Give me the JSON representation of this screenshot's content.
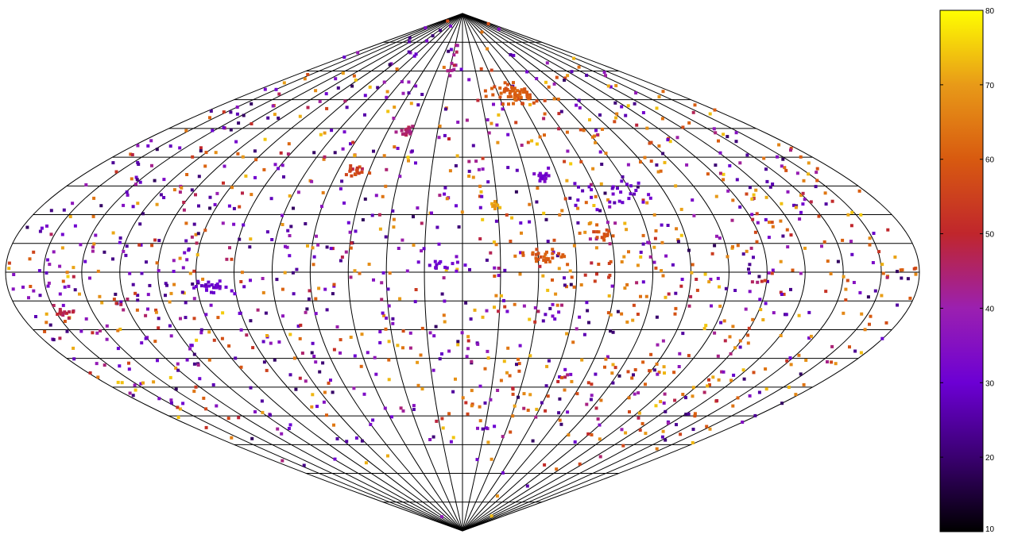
{
  "chart_data": {
    "type": "scatter",
    "projection": "sinusoidal",
    "grid": true,
    "grid_lines": {
      "parallels_deg": 10,
      "meridians_deg": 15
    },
    "x_range": [
      -180,
      180
    ],
    "y_range": [
      -90,
      90
    ],
    "colorbar": {
      "position": "right",
      "range": [
        10,
        80
      ],
      "ticks": [
        "10",
        "20",
        "30",
        "40",
        "50",
        "60",
        "70",
        "80"
      ],
      "palette": [
        "#000000",
        "#3a0070",
        "#6c00d4",
        "#9b20b0",
        "#c0262c",
        "#d85a10",
        "#e89a18",
        "#ffff00"
      ]
    },
    "clusters": [
      {
        "lon": 45,
        "lat": 62,
        "value": 60,
        "count": 60,
        "spread_lon": 9,
        "spread_lat": 2
      },
      {
        "lon": 38,
        "lat": 33,
        "value": 33,
        "count": 22,
        "spread_lon": 1.5,
        "spread_lat": 1
      },
      {
        "lon": 33,
        "lat": 5,
        "value": 60,
        "count": 30,
        "spread_lon": 5,
        "spread_lat": 1.5
      },
      {
        "lon": 58,
        "lat": 13,
        "value": 58,
        "count": 14,
        "spread_lon": 3,
        "spread_lat": 1
      },
      {
        "lon": 70,
        "lat": 28,
        "value": 30,
        "count": 25,
        "spread_lon": 10,
        "spread_lat": 3
      },
      {
        "lon": -34,
        "lat": 49,
        "value": 46,
        "count": 18,
        "spread_lon": 2,
        "spread_lat": 1
      },
      {
        "lon": -51,
        "lat": 35,
        "value": 56,
        "count": 14,
        "spread_lon": 2,
        "spread_lat": 1
      },
      {
        "lon": -98,
        "lat": -5,
        "value": 30,
        "count": 24,
        "spread_lon": 4,
        "spread_lat": 1
      },
      {
        "lon": -163,
        "lat": -14,
        "value": 48,
        "count": 16,
        "spread_lon": 3,
        "spread_lat": 1
      },
      {
        "lon": -13,
        "lat": 73,
        "value": 44,
        "count": 12,
        "spread_lon": 2,
        "spread_lat": 3
      },
      {
        "lon": 14,
        "lat": 23,
        "value": 70,
        "count": 10,
        "spread_lon": 1,
        "spread_lat": 1
      },
      {
        "lon": -7,
        "lat": 2,
        "value": 30,
        "count": 12,
        "spread_lon": 4,
        "spread_lat": 1
      }
    ],
    "background_points": {
      "count": 1500,
      "value_range": [
        15,
        75
      ],
      "seed": 7
    }
  }
}
